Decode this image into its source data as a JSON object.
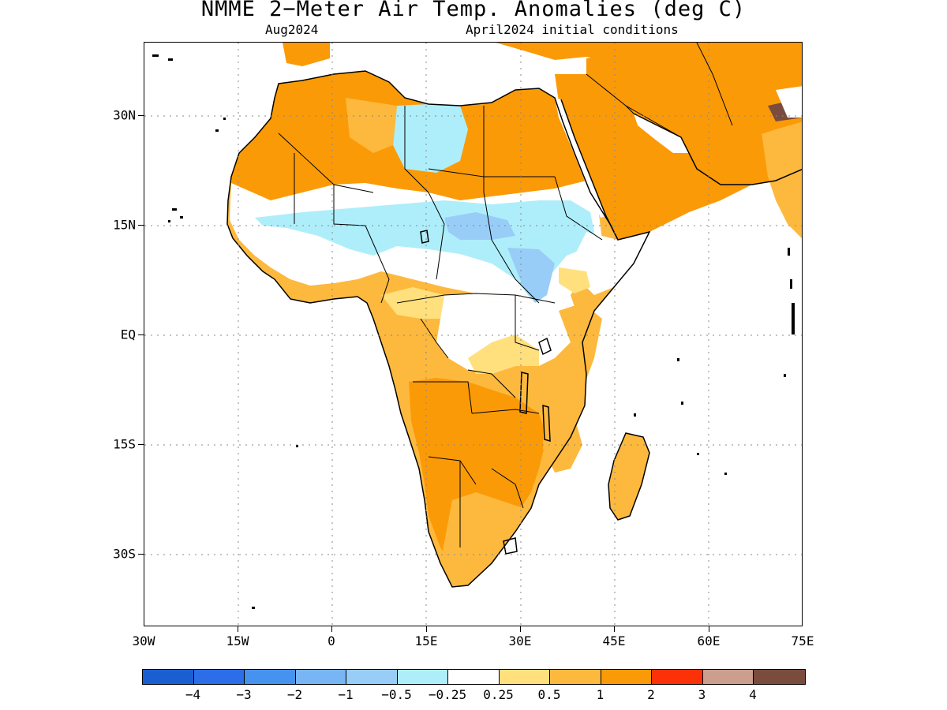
{
  "header": {
    "title": "NMME 2−Meter Air Temp. Anomalies (deg C)",
    "subtitle_left": "Aug2024",
    "subtitle_right": "April2024 initial conditions"
  },
  "axes": {
    "lat_labels": [
      "30N",
      "15N",
      "EQ",
      "15S",
      "30S"
    ],
    "lon_labels": [
      "30W",
      "15W",
      "0",
      "15E",
      "30E",
      "45E",
      "60E",
      "75E"
    ],
    "grid": "dotted"
  },
  "colorbar": {
    "colors": [
      "#1a5fd1",
      "#2b6ee8",
      "#4592ef",
      "#78b5f5",
      "#98cdf8",
      "#aeeefa",
      "#ffffff",
      "#ffe07c",
      "#fdb93d",
      "#fb9a07",
      "#fc3107",
      "#cc9e8e",
      "#7a4c3d"
    ],
    "labels": [
      "−4",
      "−3",
      "−2",
      "−1",
      "−0.5",
      "−0.25",
      "0.25",
      "0.5",
      "1",
      "2",
      "3",
      "4"
    ]
  }
}
